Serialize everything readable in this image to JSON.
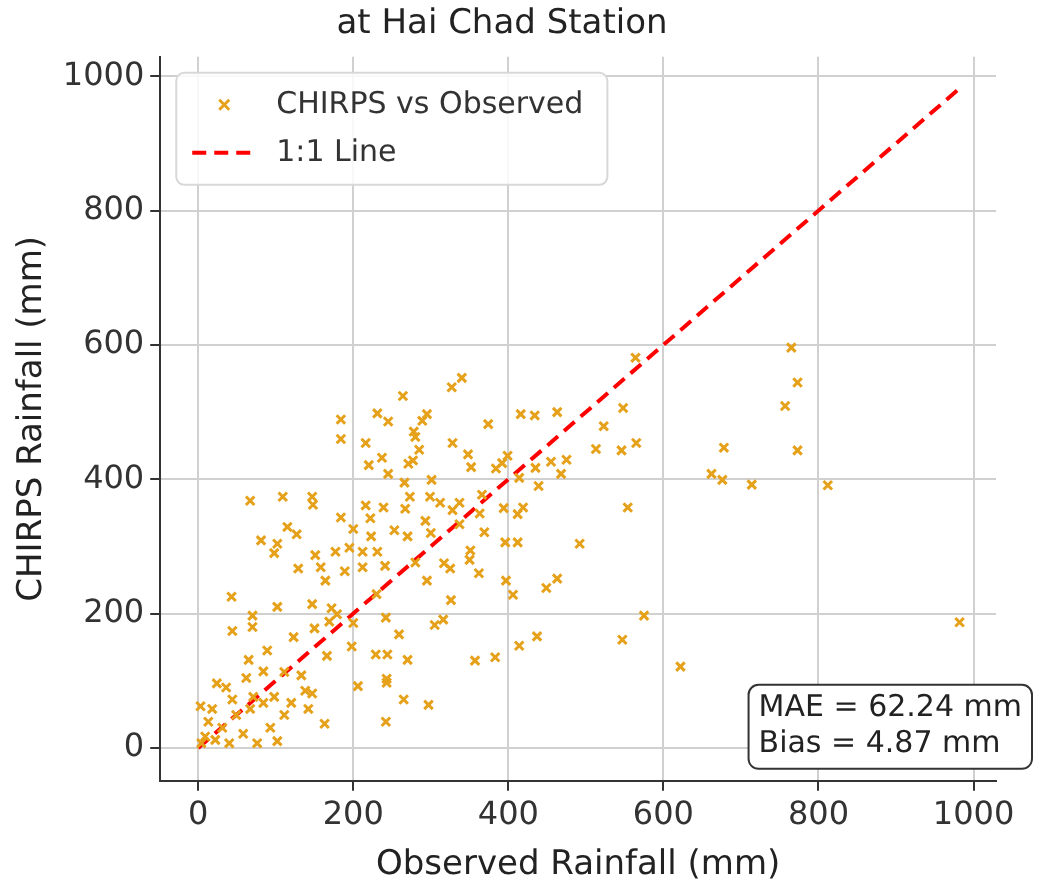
{
  "chart_data": {
    "type": "scatter",
    "title": "at Hai Chad Station",
    "xlabel": "Observed Rainfall (mm)",
    "ylabel": "CHIRPS Rainfall (mm)",
    "xlim": [
      -49,
      1029
    ],
    "ylim": [
      -49,
      1029
    ],
    "xticks": [
      0,
      200,
      400,
      600,
      800,
      1000
    ],
    "yticks": [
      0,
      200,
      400,
      600,
      800,
      1000
    ],
    "grid": true,
    "legend": "top left",
    "annotations": [
      "MAE = 62.24 mm\nBias = 4.87 mm"
    ],
    "series": [
      {
        "name": "CHIRPS vs Observed",
        "marker": "cross",
        "color": "#e6a11a",
        "x": [
          340,
          327,
          264,
          564,
          184,
          184,
          231,
          245,
          295,
          289,
          278,
          280,
          216,
          374,
          416,
          434,
          463,
          548,
          523,
          565,
          513,
          546,
          328,
          348,
          285,
          237,
          220,
          271,
          277,
          352,
          399,
          392,
          384,
          435,
          455,
          475,
          468,
          414,
          439,
          245,
          266,
          301,
          273,
          299,
          67,
          109,
          147,
          148,
          216,
          184,
          239,
          267,
          293,
          312,
          328,
          337,
          366,
          394,
          419,
          412,
          363,
          554,
          115,
          127,
          81,
          102,
          98,
          200,
          222,
          253,
          223,
          270,
          300,
          337,
          369,
          351,
          396,
          412,
          492,
          129,
          151,
          177,
          195,
          212,
          164,
          189,
          158,
          212,
          241,
          231,
          280,
          295,
          317,
          325,
          350,
          362,
          397,
          463,
          449,
          406,
          326,
          43,
          44,
          70,
          70,
          102,
          147,
          172,
          150,
          169,
          179,
          200,
          230,
          242,
          259,
          305,
          316,
          575,
          547,
          437,
          414,
          383,
          357,
          229,
          244,
          270,
          198,
          166,
          123,
          89,
          65,
          622,
          206,
          243,
          243,
          265,
          297,
          242,
          163,
          147,
          102,
          133,
          111,
          84,
          62,
          24,
          3,
          13,
          31,
          49,
          67,
          84,
          98,
          111,
          58,
          9,
          4,
          22,
          40,
          76,
          93,
          120,
          138,
          71,
          44,
          142,
          18,
          36,
          765,
          773,
          757,
          773,
          812,
          982,
          678,
          662,
          676,
          714
        ],
        "values": [
          551,
          537,
          524,
          581,
          489,
          460,
          498,
          486,
          497,
          487,
          471,
          463,
          454,
          482,
          497,
          495,
          500,
          506,
          479,
          454,
          445,
          443,
          454,
          437,
          444,
          432,
          421,
          423,
          428,
          418,
          435,
          424,
          416,
          417,
          426,
          429,
          408,
          402,
          390,
          408,
          395,
          399,
          374,
          374,
          368,
          374,
          374,
          362,
          361,
          343,
          358,
          356,
          338,
          365,
          354,
          365,
          377,
          357,
          358,
          348,
          349,
          358,
          329,
          318,
          309,
          304,
          290,
          326,
          342,
          324,
          315,
          315,
          320,
          333,
          321,
          294,
          306,
          306,
          304,
          267,
          287,
          292,
          298,
          292,
          249,
          263,
          269,
          269,
          271,
          292,
          276,
          249,
          275,
          267,
          280,
          260,
          249,
          252,
          238,
          228,
          220,
          225,
          174,
          197,
          180,
          210,
          214,
          208,
          178,
          188,
          199,
          186,
          229,
          194,
          169,
          183,
          191,
          197,
          161,
          166,
          152,
          135,
          130,
          139,
          139,
          131,
          151,
          137,
          165,
          145,
          131,
          121,
          92,
          103,
          97,
          72,
          64,
          39,
          36,
          81,
          10,
          108,
          113,
          114,
          104,
          96,
          62,
          39,
          30,
          49,
          58,
          67,
          76,
          49,
          21,
          17,
          7,
          12,
          7,
          7,
          30,
          67,
          85,
          76,
          72,
          58,
          58,
          90,
          596,
          544,
          509,
          443,
          391,
          187,
          447,
          408,
          399,
          392
        ]
      },
      {
        "name": "1:1 Line",
        "type": "line",
        "marker": "none",
        "line_style": "dashed",
        "color": "#ff0000",
        "x": [
          0,
          980
        ],
        "values": [
          0,
          980
        ]
      }
    ]
  }
}
